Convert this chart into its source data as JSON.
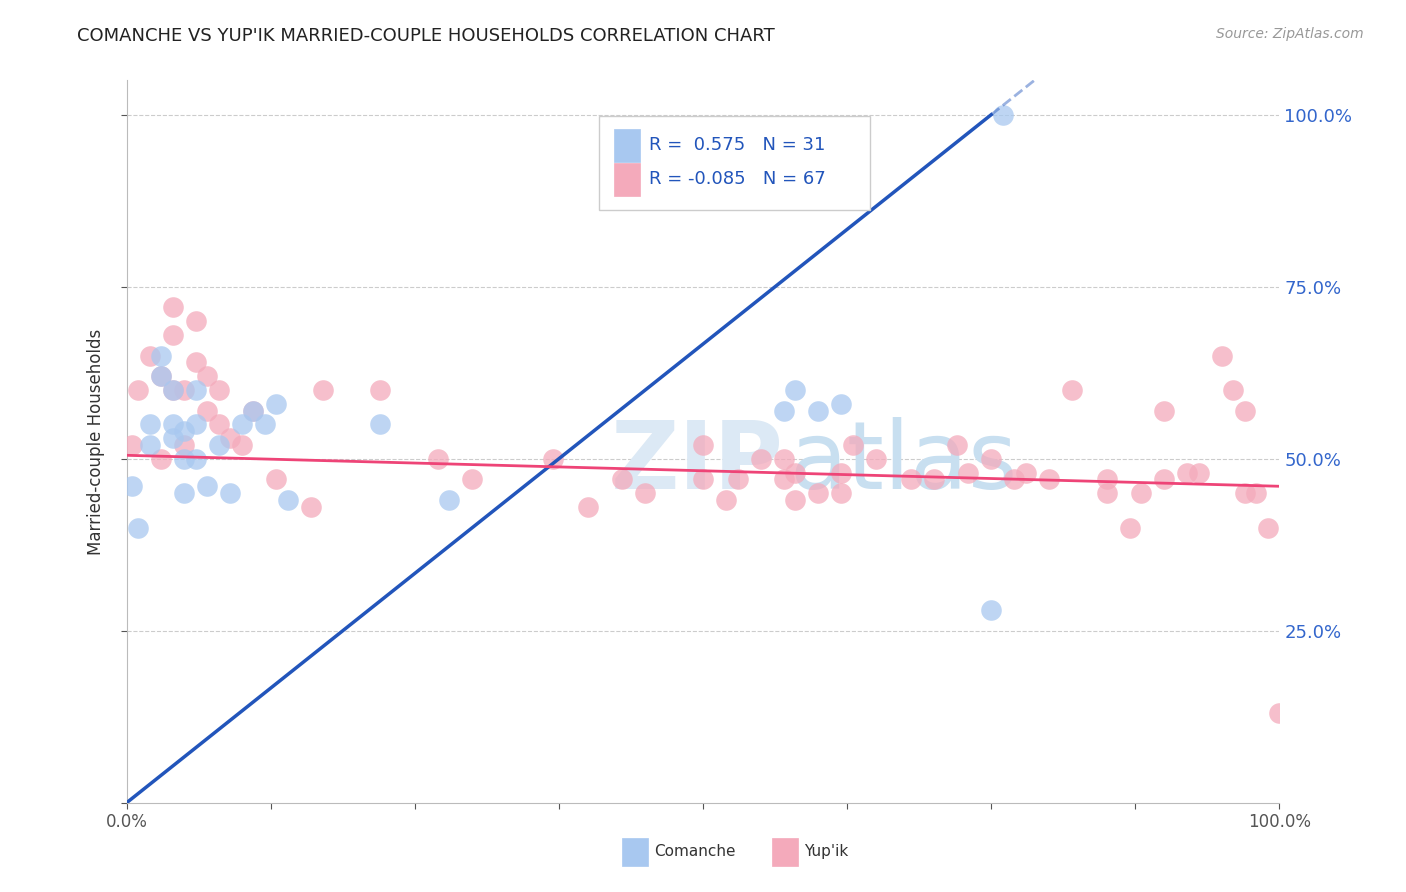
{
  "title": "COMANCHE VS YUP'IK MARRIED-COUPLE HOUSEHOLDS CORRELATION CHART",
  "source": "Source: ZipAtlas.com",
  "ylabel": "Married-couple Households",
  "ylabel_right_ticks": [
    "25.0%",
    "50.0%",
    "75.0%",
    "100.0%"
  ],
  "ylabel_right_vals": [
    0.25,
    0.5,
    0.75,
    1.0
  ],
  "comanche_label": "Comanche",
  "yupik_label": "Yup'ik",
  "legend_line1": "R =  0.575   N = 31",
  "legend_line2": "R = -0.085   N = 67",
  "comanche_color": "#A8C8F0",
  "yupik_color": "#F4AABB",
  "comanche_line_color": "#2255BB",
  "yupik_line_color": "#EE4477",
  "legend_R_color": "#2255BB",
  "comanche_x": [
    0.005,
    0.01,
    0.02,
    0.02,
    0.03,
    0.03,
    0.04,
    0.04,
    0.04,
    0.05,
    0.05,
    0.05,
    0.06,
    0.06,
    0.06,
    0.07,
    0.08,
    0.09,
    0.1,
    0.11,
    0.12,
    0.13,
    0.14,
    0.22,
    0.28,
    0.57,
    0.58,
    0.6,
    0.62,
    0.75,
    0.76
  ],
  "comanche_y": [
    0.46,
    0.4,
    0.52,
    0.55,
    0.62,
    0.65,
    0.53,
    0.55,
    0.6,
    0.54,
    0.5,
    0.45,
    0.6,
    0.55,
    0.5,
    0.46,
    0.52,
    0.45,
    0.55,
    0.57,
    0.55,
    0.58,
    0.44,
    0.55,
    0.44,
    0.57,
    0.6,
    0.57,
    0.58,
    0.28,
    1.0
  ],
  "yupik_x": [
    0.005,
    0.01,
    0.02,
    0.03,
    0.03,
    0.04,
    0.04,
    0.04,
    0.05,
    0.05,
    0.06,
    0.06,
    0.07,
    0.07,
    0.08,
    0.08,
    0.09,
    0.1,
    0.11,
    0.13,
    0.16,
    0.17,
    0.22,
    0.27,
    0.3,
    0.37,
    0.4,
    0.43,
    0.45,
    0.5,
    0.5,
    0.52,
    0.53,
    0.55,
    0.57,
    0.57,
    0.58,
    0.58,
    0.6,
    0.62,
    0.62,
    0.63,
    0.65,
    0.68,
    0.7,
    0.72,
    0.73,
    0.75,
    0.77,
    0.78,
    0.8,
    0.82,
    0.85,
    0.85,
    0.87,
    0.88,
    0.9,
    0.9,
    0.92,
    0.93,
    0.95,
    0.96,
    0.97,
    0.97,
    0.98,
    0.99,
    1.0
  ],
  "yupik_y": [
    0.52,
    0.6,
    0.65,
    0.5,
    0.62,
    0.6,
    0.68,
    0.72,
    0.52,
    0.6,
    0.7,
    0.64,
    0.62,
    0.57,
    0.6,
    0.55,
    0.53,
    0.52,
    0.57,
    0.47,
    0.43,
    0.6,
    0.6,
    0.5,
    0.47,
    0.5,
    0.43,
    0.47,
    0.45,
    0.52,
    0.47,
    0.44,
    0.47,
    0.5,
    0.5,
    0.47,
    0.44,
    0.48,
    0.45,
    0.45,
    0.48,
    0.52,
    0.5,
    0.47,
    0.47,
    0.52,
    0.48,
    0.5,
    0.47,
    0.48,
    0.47,
    0.6,
    0.47,
    0.45,
    0.4,
    0.45,
    0.47,
    0.57,
    0.48,
    0.48,
    0.65,
    0.6,
    0.57,
    0.45,
    0.45,
    0.4,
    0.13
  ],
  "background_color": "#FFFFFF",
  "grid_color": "#CCCCCC",
  "xlim": [
    0.0,
    1.0
  ],
  "ylim": [
    0.0,
    1.05
  ],
  "blue_line_x0": 0.0,
  "blue_line_y0": 0.0,
  "blue_line_x1": 0.75,
  "blue_line_y1": 1.0,
  "pink_line_x0": 0.0,
  "pink_line_y0": 0.505,
  "pink_line_x1": 1.0,
  "pink_line_y1": 0.46
}
